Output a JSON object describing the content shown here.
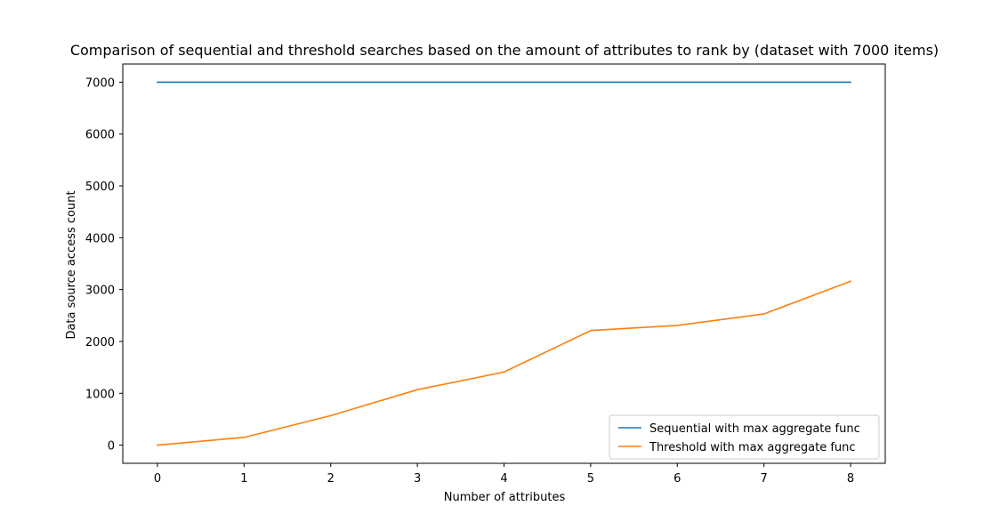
{
  "chart_data": {
    "type": "line",
    "title": "Comparison of sequential and threshold searches based on the amount of attributes to rank by (dataset with 7000 items)",
    "xlabel": "Number of attributes",
    "ylabel": "Data source access count",
    "x": [
      0,
      1,
      2,
      3,
      4,
      5,
      6,
      7,
      8
    ],
    "xlim": [
      -0.4,
      8.4
    ],
    "ylim": [
      -350,
      7350
    ],
    "xticks": [
      0,
      1,
      2,
      3,
      4,
      5,
      6,
      7,
      8
    ],
    "yticks": [
      0,
      1000,
      2000,
      3000,
      4000,
      5000,
      6000,
      7000
    ],
    "grid": false,
    "legend_position": "lower right",
    "series": [
      {
        "name": "Sequential with max aggregate func",
        "color": "#1f77b4",
        "values": [
          7000,
          7000,
          7000,
          7000,
          7000,
          7000,
          7000,
          7000,
          7000
        ]
      },
      {
        "name": "Threshold with max aggregate func",
        "color": "#ff7f0e",
        "values": [
          0,
          150,
          570,
          1070,
          1410,
          2210,
          2310,
          2530,
          3160
        ]
      }
    ]
  }
}
